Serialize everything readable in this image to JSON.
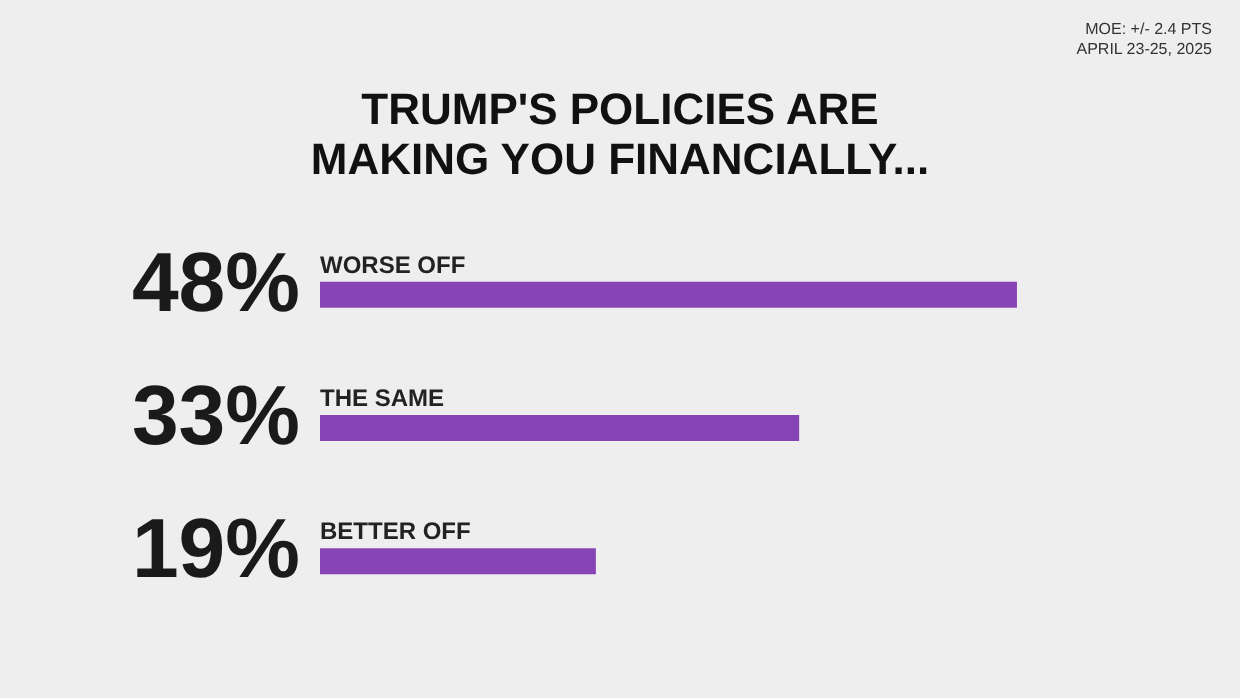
{
  "chart_data": {
    "type": "bar",
    "orientation": "horizontal",
    "title": "TRUMP'S POLICIES ARE MAKING YOU FINANCIALLY...",
    "annotations": [
      "MOE: +/- 2.4 PTS",
      "APRIL 23-25, 2025"
    ],
    "categories": [
      "WORSE OFF",
      "THE SAME",
      "BETTER OFF"
    ],
    "values": [
      48,
      33,
      19
    ],
    "value_labels": [
      "48%",
      "33%",
      "19%"
    ],
    "color": "#8744b5"
  }
}
